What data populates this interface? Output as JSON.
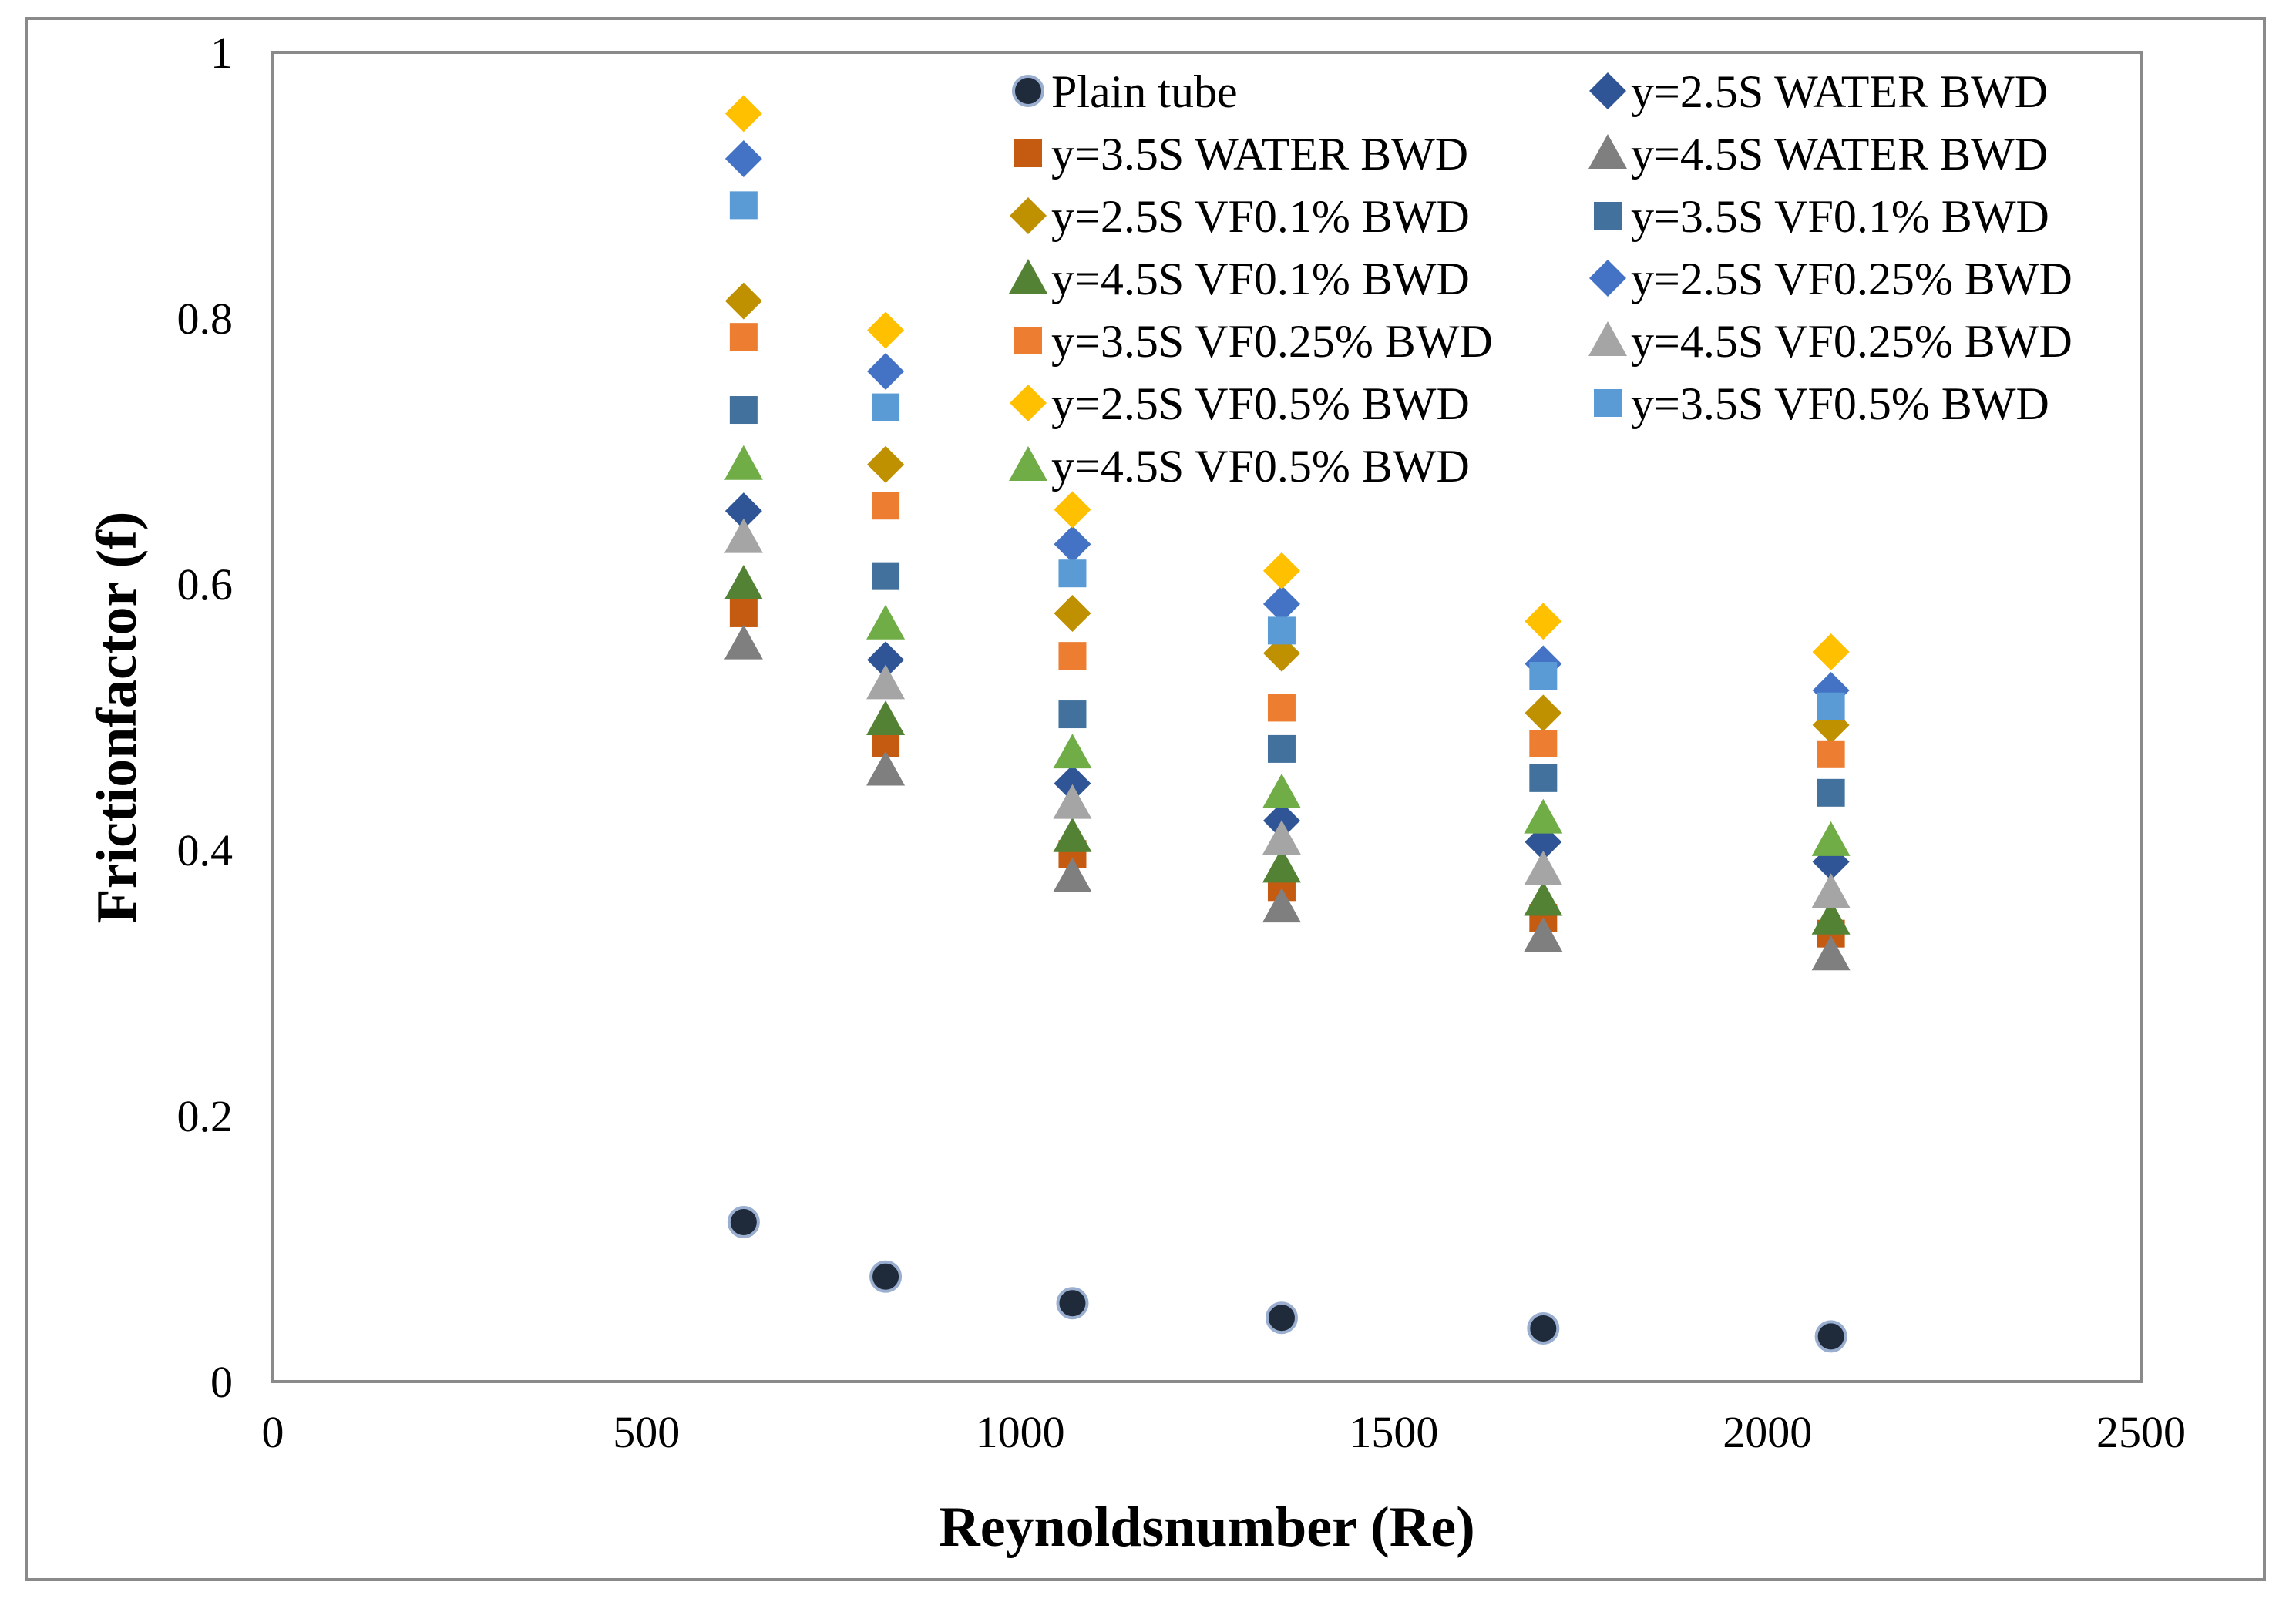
{
  "chart_data": {
    "type": "scatter",
    "title": "",
    "xlabel": "Reynoldsnumber (Re)",
    "ylabel": "Frictionfactor  (f)",
    "xlim": [
      0,
      2500
    ],
    "ylim": [
      0,
      1
    ],
    "xticks": [
      "0",
      "500",
      "1000",
      "1500",
      "2000",
      "2500"
    ],
    "yticks": [
      "0",
      "0.2",
      "0.4",
      "0.6",
      "0.8",
      "1"
    ],
    "legend_position": "top-right inside",
    "x": [
      630,
      820,
      1070,
      1350,
      1700,
      2085
    ],
    "series": [
      {
        "name": "Plain tube",
        "marker": "circle",
        "color": "#1f2a3a",
        "values": [
          0.12,
          0.079,
          0.059,
          0.048,
          0.04,
          0.034
        ]
      },
      {
        "name": "y=2.5S WATER BWD",
        "marker": "diamond",
        "color": "#2f5597",
        "values": [
          0.655,
          0.543,
          0.45,
          0.422,
          0.406,
          0.391
        ]
      },
      {
        "name": "y=3.5S WATER BWD",
        "marker": "square",
        "color": "#c55a11",
        "values": [
          0.578,
          0.48,
          0.397,
          0.372,
          0.349,
          0.337
        ]
      },
      {
        "name": "y=4.5S WATER BWD",
        "marker": "triangle",
        "color": "#7f7f7f",
        "values": [
          0.555,
          0.46,
          0.38,
          0.357,
          0.335,
          0.321
        ]
      },
      {
        "name": "y=2.5S VF0.1% BWD",
        "marker": "diamond",
        "color": "#bf9000",
        "values": [
          0.813,
          0.69,
          0.578,
          0.548,
          0.503,
          0.494
        ]
      },
      {
        "name": "y=3.5S VF0.1% BWD",
        "marker": "square",
        "color": "#41719c",
        "values": [
          0.731,
          0.606,
          0.502,
          0.476,
          0.454,
          0.443
        ]
      },
      {
        "name": "y=4.5S VF0.1% BWD",
        "marker": "triangle",
        "color": "#548235",
        "values": [
          0.6,
          0.498,
          0.41,
          0.387,
          0.362,
          0.348
        ]
      },
      {
        "name": "y=2.5S VF0.25% BWD",
        "marker": "diamond",
        "color": "#4472c4",
        "values": [
          0.92,
          0.76,
          0.63,
          0.585,
          0.54,
          0.52
        ]
      },
      {
        "name": "y=3.5S VF0.25% BWD",
        "marker": "square",
        "color": "#ed7d31",
        "values": [
          0.786,
          0.659,
          0.546,
          0.507,
          0.48,
          0.472
        ]
      },
      {
        "name": "y=4.5S VF0.25% BWD",
        "marker": "triangle",
        "color": "#a5a5a5",
        "values": [
          0.635,
          0.525,
          0.435,
          0.408,
          0.385,
          0.368
        ]
      },
      {
        "name": "y=2.5S VF0.5% BWD",
        "marker": "diamond",
        "color": "#ffc000",
        "values": [
          0.954,
          0.791,
          0.656,
          0.61,
          0.572,
          0.549
        ]
      },
      {
        "name": "y=3.5S VF0.5% BWD",
        "marker": "square",
        "color": "#5b9bd5",
        "values": [
          0.885,
          0.733,
          0.608,
          0.565,
          0.531,
          0.508
        ]
      },
      {
        "name": "y=4.5S VF0.5% BWD",
        "marker": "triangle",
        "color": "#70ad47",
        "values": [
          0.69,
          0.57,
          0.473,
          0.443,
          0.424,
          0.407
        ]
      }
    ]
  }
}
